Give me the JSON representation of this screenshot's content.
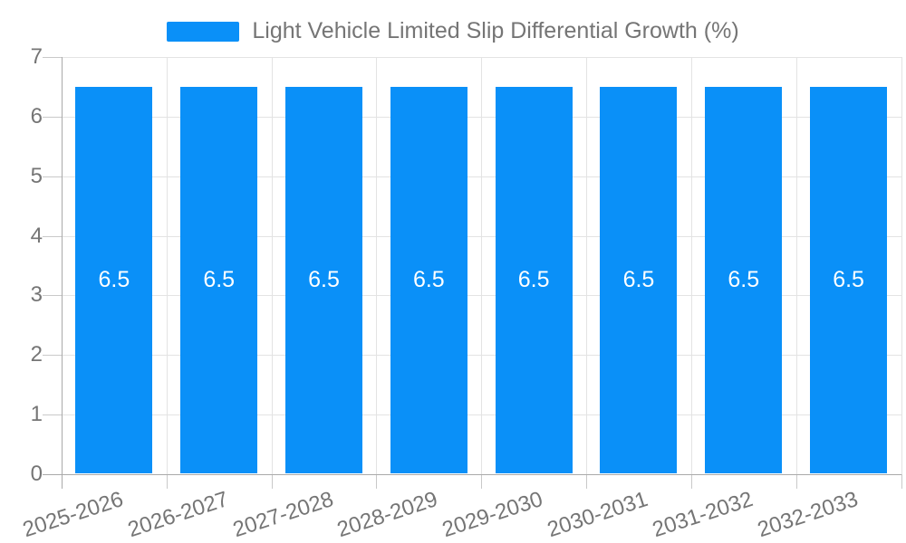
{
  "chart_data": {
    "type": "bar",
    "title": "Light Vehicle Limited Slip Differential Growth (%)",
    "categories": [
      "2025-2026",
      "2026-2027",
      "2027-2028",
      "2028-2029",
      "2029-2030",
      "2030-2031",
      "2031-2032",
      "2032-2033"
    ],
    "values": [
      6.5,
      6.5,
      6.5,
      6.5,
      6.5,
      6.5,
      6.5,
      6.5
    ],
    "value_labels": [
      "6.5",
      "6.5",
      "6.5",
      "6.5",
      "6.5",
      "6.5",
      "6.5",
      "6.5"
    ],
    "xlabel": "",
    "ylabel": "",
    "ylim": [
      0,
      7
    ],
    "yticks": [
      0,
      1,
      2,
      3,
      4,
      5,
      6,
      7
    ],
    "ytick_labels": [
      "0",
      "1",
      "2",
      "3",
      "4",
      "5",
      "6",
      "7"
    ],
    "grid": true,
    "legend_position": "top"
  },
  "colors": {
    "bar": "#0a90f8",
    "text": "#757575",
    "grid": "#e3e3e3",
    "axis": "#aaaaaa",
    "tick": "#c9c9c9",
    "value_label": "#ffffff",
    "background": "#ffffff"
  }
}
